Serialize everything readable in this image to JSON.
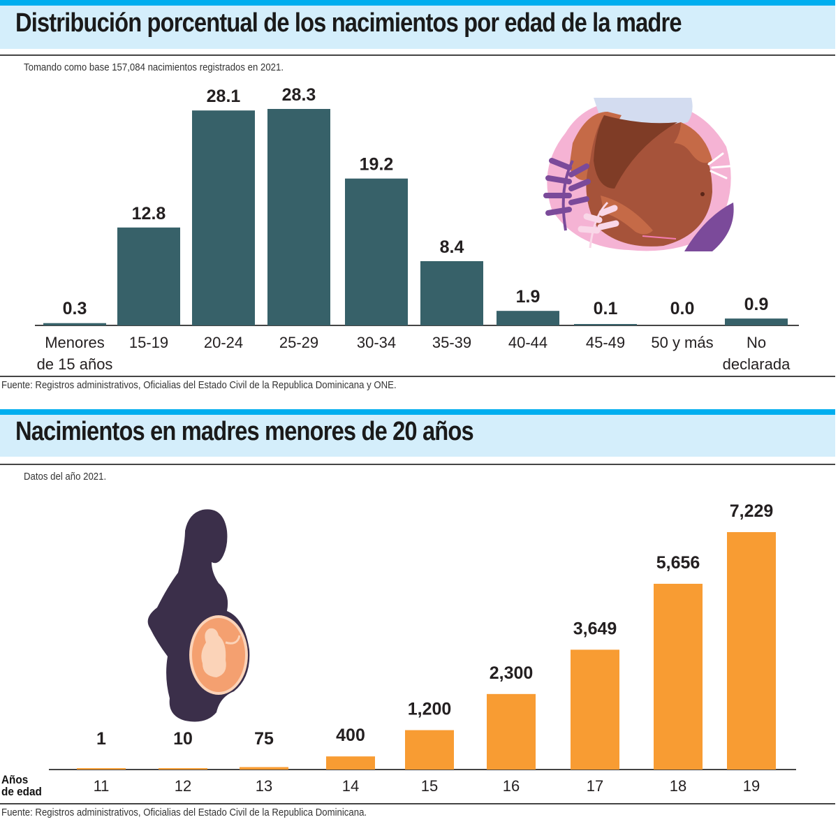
{
  "chart1": {
    "title": "Distribución porcentual de los nacimientos por edad de la madre",
    "subtitle": "Tomando como base 157,084 nacimientos registrados en 2021.",
    "source": "Fuente: Registros administrativos, Oficialias del Estado Civil de la Republica Dominicana y ONE.",
    "illustration": "pregnant-belly-illustration"
  },
  "chart2": {
    "title": "Nacimientos en madres menores de 20 años",
    "subtitle": "Datos del año 2021.",
    "axis_label_line1": "Años",
    "axis_label_line2": "de edad",
    "source": "Fuente: Registros administrativos, Oficialias del Estado Civil de la Republica Dominicana.",
    "illustration": "pregnant-silhouette-illustration"
  },
  "colors": {
    "header_accent": "#00aeef",
    "header_band": "#d4eefb",
    "bar_teal": "#376169",
    "bar_orange": "#f89c33"
  },
  "chart_data": [
    {
      "type": "bar",
      "title": "Distribución porcentual de los nacimientos por edad de la madre",
      "subtitle": "Tomando como base 157,084 nacimientos registrados en 2021.",
      "xlabel": "",
      "ylabel": "",
      "unit": "%",
      "categories": [
        [
          "Menores",
          "de 15 años"
        ],
        [
          "15-19"
        ],
        [
          "20-24"
        ],
        [
          "25-29"
        ],
        [
          "30-34"
        ],
        [
          "35-39"
        ],
        [
          "40-44"
        ],
        [
          "45-49"
        ],
        [
          "50 y más"
        ],
        [
          "No",
          "declarada"
        ]
      ],
      "values": [
        0.3,
        12.8,
        28.1,
        28.3,
        19.2,
        8.4,
        1.9,
        0.1,
        0.0,
        0.9
      ],
      "labels": [
        "0.3",
        "12.8",
        "28.1",
        "28.3",
        "19.2",
        "8.4",
        "1.9",
        "0.1",
        "0.0",
        "0.9"
      ],
      "ylim": [
        0,
        28.3
      ],
      "grid": false,
      "legend": "none"
    },
    {
      "type": "bar",
      "title": "Nacimientos en madres menores de 20 años",
      "subtitle": "Datos del año 2021.",
      "xlabel": "Años de edad",
      "ylabel": "",
      "categories": [
        "11",
        "12",
        "13",
        "14",
        "15",
        "16",
        "17",
        "18",
        "19"
      ],
      "values": [
        1,
        10,
        75,
        400,
        1200,
        2300,
        3649,
        5656,
        7229
      ],
      "labels": [
        "1",
        "10",
        "75",
        "400",
        "1,200",
        "2,300",
        "3,649",
        "5,656",
        "7,229"
      ],
      "ylim": [
        0,
        7229
      ],
      "grid": false,
      "legend": "none"
    }
  ]
}
